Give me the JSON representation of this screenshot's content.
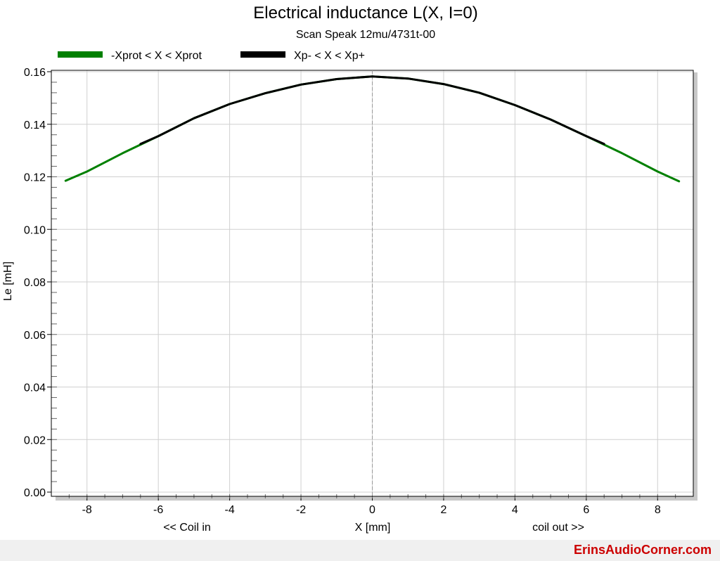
{
  "chart_data": {
    "type": "line",
    "title": "Electrical inductance L(X, I=0)",
    "subtitle": "Scan Speak 12mu/4731t-00",
    "xlabel": "X [mm]",
    "xlabel_left": "<< Coil in",
    "xlabel_right": "coil out >>",
    "ylabel": "Le [mH]",
    "xlim": [
      -9,
      9
    ],
    "ylim": [
      0,
      0.16
    ],
    "xticks": [
      -8,
      -6,
      -4,
      -2,
      0,
      2,
      4,
      6,
      8
    ],
    "xtick_labels": [
      "-8",
      "-6",
      "-4",
      "-2",
      "0",
      "2",
      "4",
      "6",
      "8"
    ],
    "yticks": [
      0,
      0.02,
      0.04,
      0.06,
      0.08,
      0.1,
      0.12,
      0.14,
      0.16
    ],
    "ytick_labels": [
      "0.00",
      "0.02",
      "0.04",
      "0.06",
      "0.08",
      "0.10",
      "0.12",
      "0.14",
      "0.16"
    ],
    "grid": true,
    "legend_position": "top-left",
    "series": [
      {
        "name": "-Xprot < X < Xprot",
        "color": "#008000",
        "x": [
          -8.6,
          -8,
          -7,
          -6,
          -5,
          -4,
          -3,
          -2,
          -1,
          0,
          1,
          2,
          3,
          4,
          5,
          6,
          7,
          8,
          8.6
        ],
        "y": [
          0.1185,
          0.122,
          0.129,
          0.1355,
          0.1423,
          0.1477,
          0.1518,
          0.1551,
          0.1572,
          0.1582,
          0.1574,
          0.1553,
          0.152,
          0.1473,
          0.1418,
          0.1355,
          0.129,
          0.122,
          0.1183
        ]
      },
      {
        "name": "Xp- < X < Xp+",
        "color": "#000000",
        "x": [
          -6.5,
          -6,
          -5,
          -4,
          -3,
          -2,
          -1,
          0,
          1,
          2,
          3,
          4,
          5,
          6,
          6.5
        ],
        "y": [
          0.1325,
          0.1355,
          0.1423,
          0.1477,
          0.1518,
          0.1551,
          0.1572,
          0.1582,
          0.1574,
          0.1553,
          0.152,
          0.1473,
          0.1418,
          0.1355,
          0.1325
        ]
      }
    ],
    "annotations": [
      {
        "type": "vline",
        "x": 0,
        "style": "dashed",
        "color": "#999999"
      }
    ]
  },
  "watermark": "ErinsAudioCorner.com",
  "colors": {
    "green": "#008000",
    "black": "#000000",
    "watermark": "#cc0000"
  }
}
